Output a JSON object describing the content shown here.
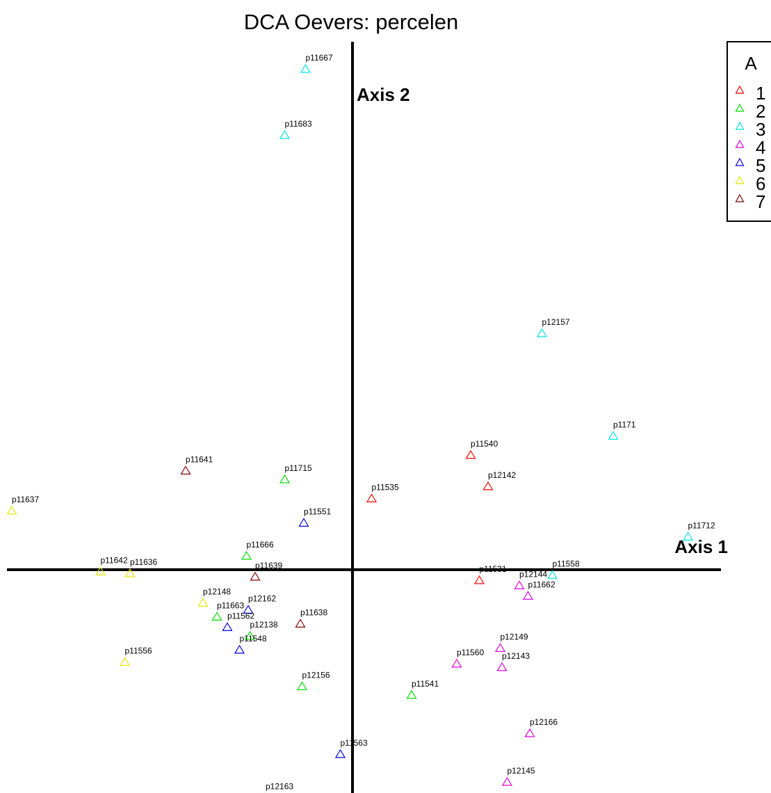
{
  "chart_data": {
    "type": "scatter",
    "title": "DCA Oevers: percelen",
    "xlabel": "Axis 1",
    "ylabel": "Axis 2",
    "xlim": [
      -100,
      105
    ],
    "ylim": [
      -135,
      150
    ],
    "legend": {
      "title": "A",
      "placement": "top-right",
      "entries": [
        {
          "label": "1",
          "color": "#ff0000"
        },
        {
          "label": "2",
          "color": "#00e000"
        },
        {
          "label": "3",
          "color": "#00e5e5"
        },
        {
          "label": "4",
          "color": "#e000e0"
        },
        {
          "label": "5",
          "color": "#0000dd"
        },
        {
          "label": "6",
          "color": "#e5e500"
        },
        {
          "label": "7",
          "color": "#8b0000"
        }
      ]
    },
    "points": [
      {
        "label": "p11667",
        "group": "3",
        "x": -13.5,
        "y": 143
      },
      {
        "label": "p11683",
        "group": "3",
        "x": -19.5,
        "y": 124
      },
      {
        "label": "p12157",
        "group": "3",
        "x": 54.5,
        "y": 67
      },
      {
        "label": "p1171",
        "group": "3",
        "x": 75,
        "y": 37.5
      },
      {
        "label": "p11712",
        "group": "3",
        "x": 96.5,
        "y": 8.5
      },
      {
        "label": "p11558",
        "group": "3",
        "x": 57.5,
        "y": -2.5
      },
      {
        "label": "p11540",
        "group": "1",
        "x": 34,
        "y": 32
      },
      {
        "label": "p12142",
        "group": "1",
        "x": 39,
        "y": 23
      },
      {
        "label": "p11535",
        "group": "1",
        "x": 5.5,
        "y": 19.5
      },
      {
        "label": "p11531",
        "group": "1",
        "x": 36.5,
        "y": -4
      },
      {
        "label": "p11715",
        "group": "2",
        "x": -19.5,
        "y": 25
      },
      {
        "label": "p11666",
        "group": "2",
        "x": -30.5,
        "y": 3
      },
      {
        "label": "p11663",
        "group": "2",
        "x": -39,
        "y": -14.5
      },
      {
        "label": "p12138",
        "group": "2",
        "x": -29.5,
        "y": -20
      },
      {
        "label": "p12156",
        "group": "2",
        "x": -14.5,
        "y": -34.5
      },
      {
        "label": "p11541",
        "group": "2",
        "x": 17,
        "y": -37
      },
      {
        "label": "p12163",
        "group": "2",
        "x": -25,
        "y": -66.5
      },
      {
        "label": "p11551",
        "group": "5",
        "x": -14,
        "y": 12.5
      },
      {
        "label": "p12162",
        "group": "5",
        "x": -30,
        "y": -12.5
      },
      {
        "label": "p11562",
        "group": "5",
        "x": -36,
        "y": -17.5
      },
      {
        "label": "p11548",
        "group": "5",
        "x": -32.5,
        "y": -24
      },
      {
        "label": "p11563",
        "group": "5",
        "x": -3.5,
        "y": -54
      },
      {
        "label": "p11641",
        "group": "7",
        "x": -48,
        "y": 27.5
      },
      {
        "label": "p11639",
        "group": "7",
        "x": -28,
        "y": -3
      },
      {
        "label": "p11638",
        "group": "7",
        "x": -15,
        "y": -16.5
      },
      {
        "label": "p11637",
        "group": "6",
        "x": -98,
        "y": 16
      },
      {
        "label": "p11642",
        "group": "6",
        "x": -72.5,
        "y": -1.5
      },
      {
        "label": "p11636",
        "group": "6",
        "x": -64,
        "y": -2
      },
      {
        "label": "p12148",
        "group": "6",
        "x": -43,
        "y": -10.5
      },
      {
        "label": "p11556",
        "group": "6",
        "x": -65.5,
        "y": -27.5
      },
      {
        "label": "p12144",
        "group": "4",
        "x": 48,
        "y": -5.5
      },
      {
        "label": "p11662",
        "group": "4",
        "x": 50.5,
        "y": -8.5
      },
      {
        "label": "p12149",
        "group": "4",
        "x": 42.5,
        "y": -23.5
      },
      {
        "label": "p11560",
        "group": "4",
        "x": 30,
        "y": -28
      },
      {
        "label": "p12143",
        "group": "4",
        "x": 43,
        "y": -29
      },
      {
        "label": "p12166",
        "group": "4",
        "x": 51,
        "y": -48
      },
      {
        "label": "p12145",
        "group": "4",
        "x": 44.5,
        "y": -62
      }
    ]
  }
}
